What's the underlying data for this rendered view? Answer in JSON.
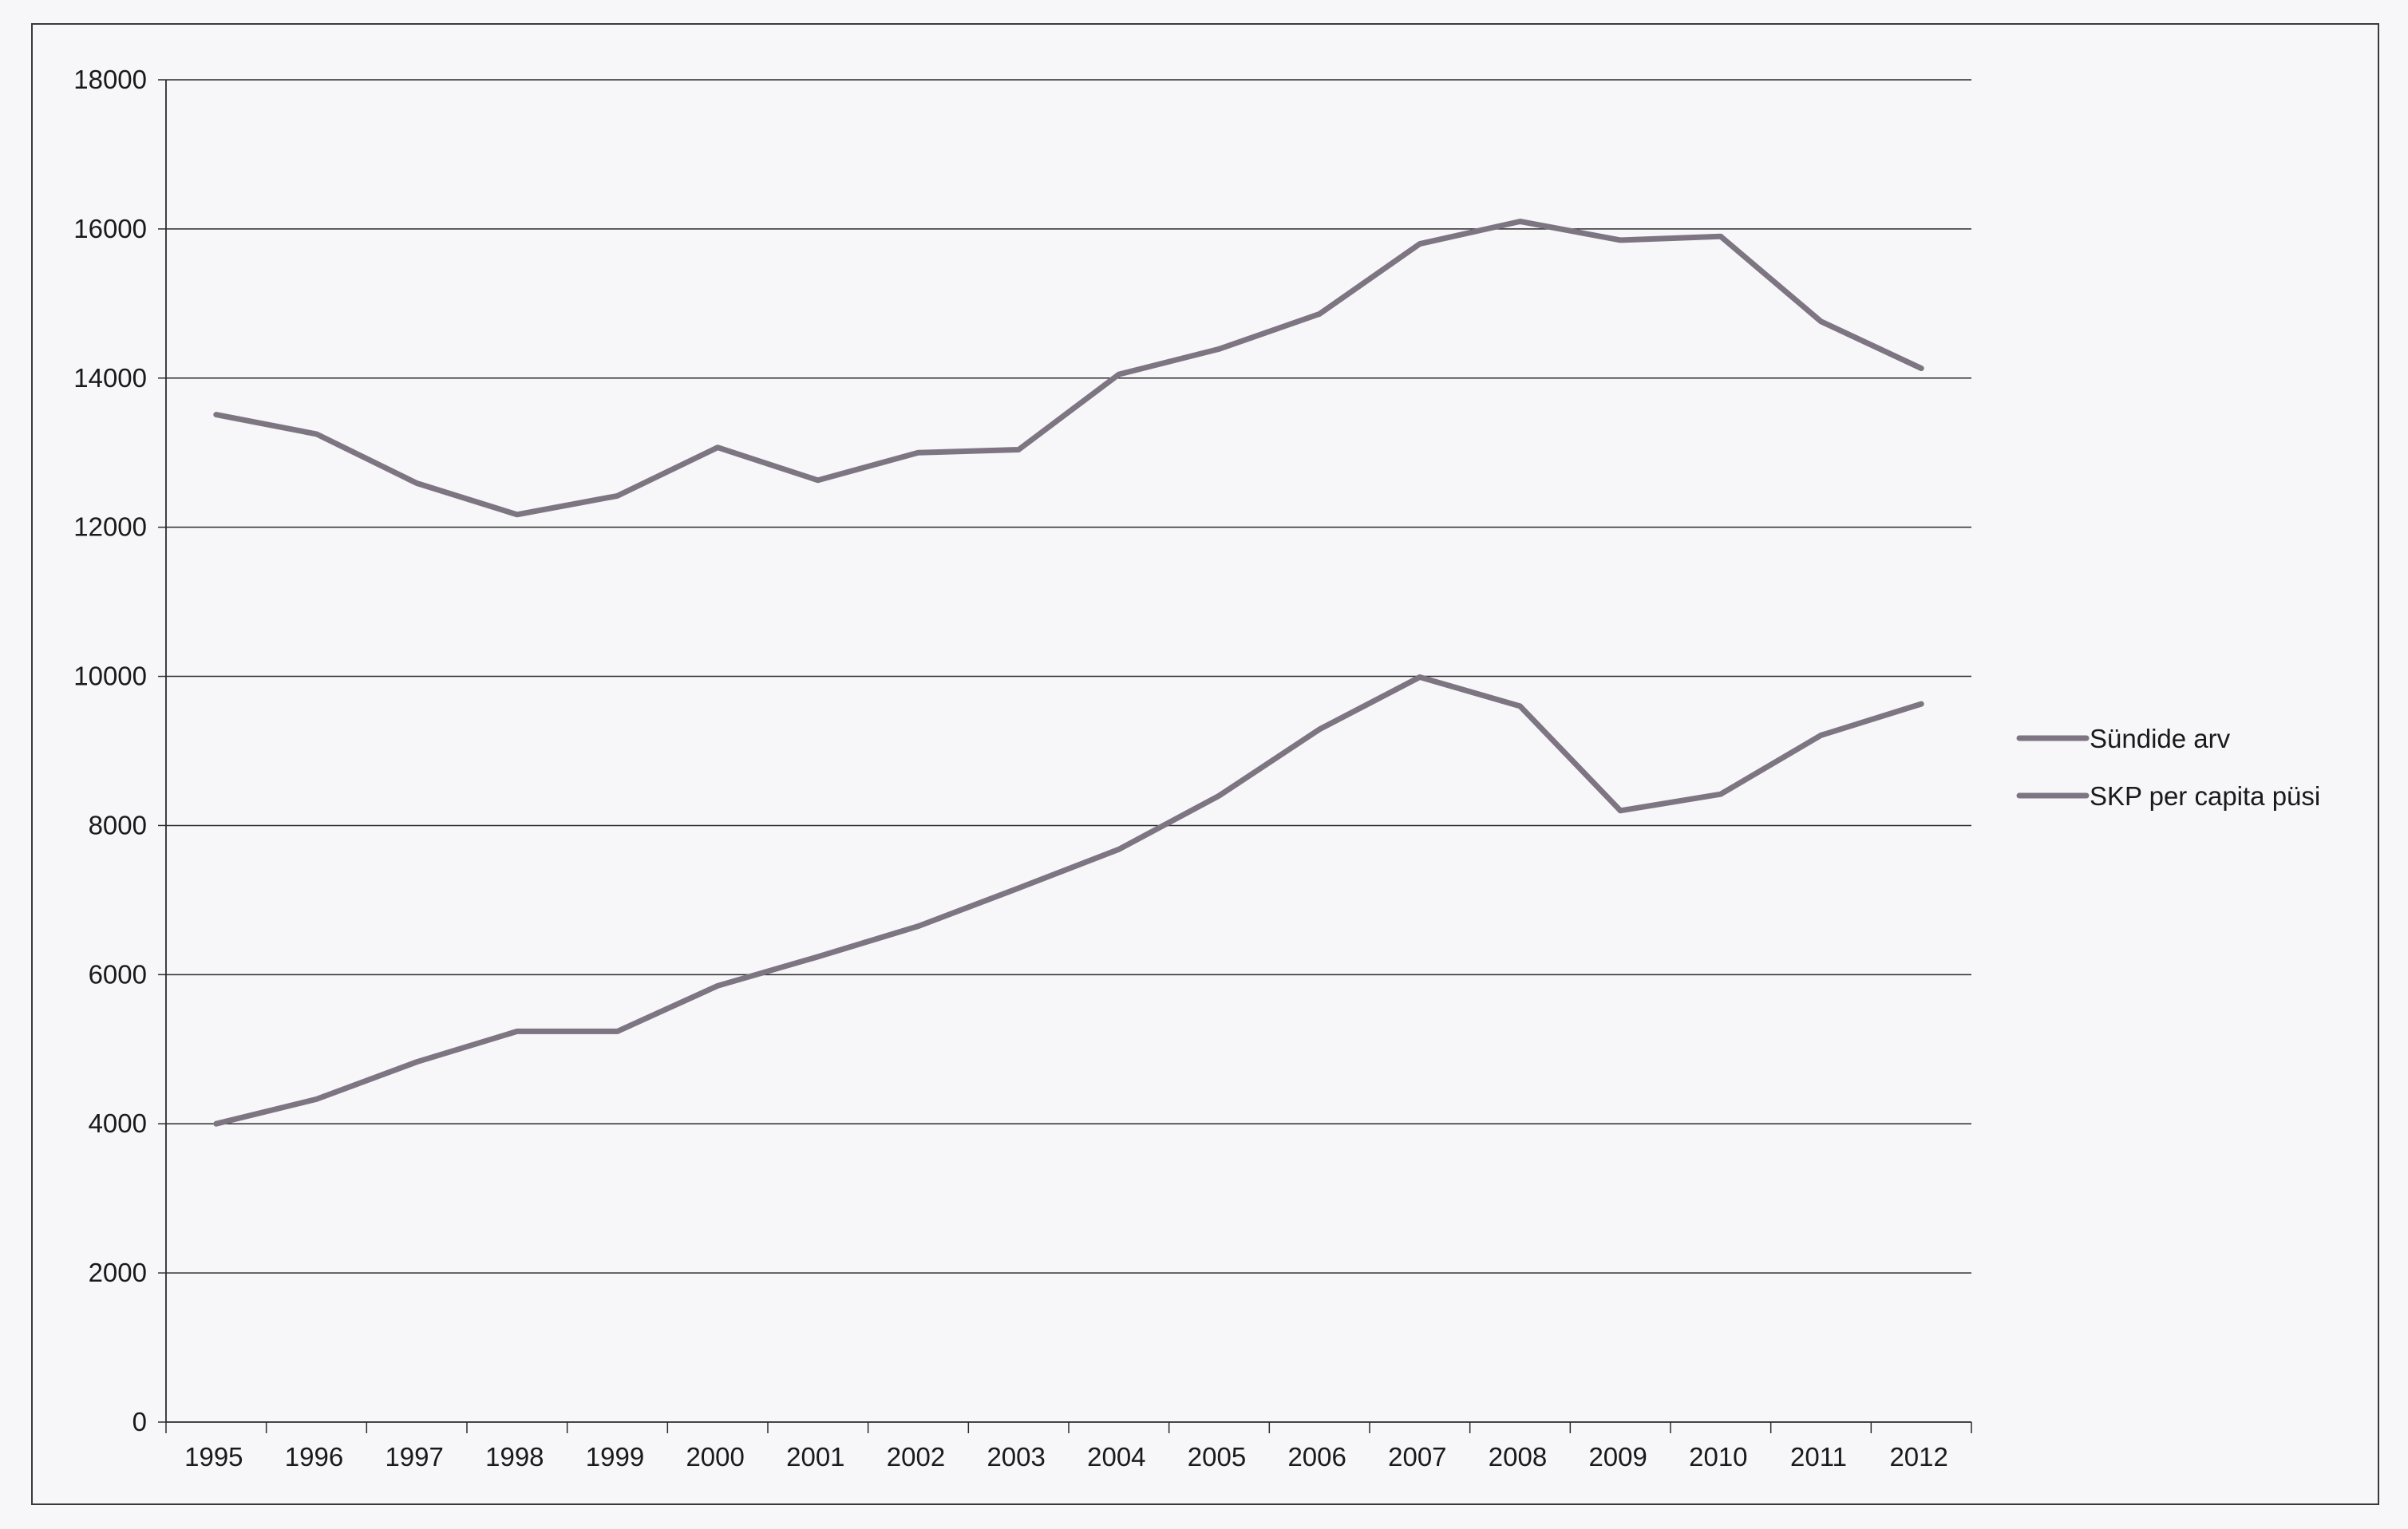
{
  "chart_data": {
    "type": "line",
    "title": "",
    "xlabel": "",
    "ylabel": "",
    "categories": [
      "1995",
      "1996",
      "1997",
      "1998",
      "1999",
      "2000",
      "2001",
      "2002",
      "2003",
      "2004",
      "2005",
      "2006",
      "2007",
      "2008",
      "2009",
      "2010",
      "2011",
      "2012"
    ],
    "y_ticks": [
      "0",
      "2000",
      "4000",
      "6000",
      "8000",
      "10000",
      "12000",
      "14000",
      "16000",
      "18000"
    ],
    "ylim": [
      0,
      18000
    ],
    "grid": "horizontal",
    "legend_position": "right",
    "line_color": "#7d7682",
    "series": [
      {
        "name": "Sündide arv",
        "values": [
          13510,
          13250,
          12590,
          12170,
          12420,
          13070,
          12630,
          13000,
          13040,
          14050,
          14390,
          14860,
          15800,
          16100,
          15850,
          15900,
          14760,
          14130
        ]
      },
      {
        "name": "SKP per capita püsi",
        "values": [
          4000,
          4330,
          4830,
          5240,
          5240,
          5850,
          6240,
          6650,
          7160,
          7680,
          8400,
          9290,
          9990,
          9600,
          8200,
          8420,
          9210,
          9630
        ]
      }
    ]
  }
}
